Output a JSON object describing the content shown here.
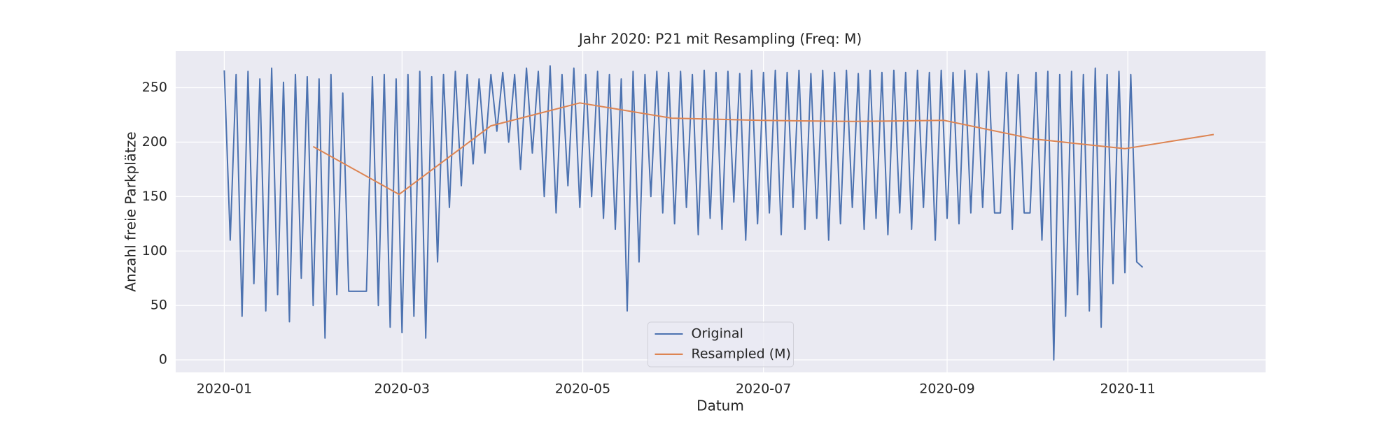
{
  "chart_data": {
    "type": "line",
    "title": "Jahr 2020: P21 mit Resampling (Freq: M)",
    "xlabel": "Datum",
    "ylabel": "Anzahl freie Parkplätze",
    "xlim": [
      -16.4,
      351.5
    ],
    "ylim": [
      -11.5,
      283.7
    ],
    "xticks": [
      {
        "value": 0,
        "label": "2020-01"
      },
      {
        "value": 60,
        "label": "2020-03"
      },
      {
        "value": 121,
        "label": "2020-05"
      },
      {
        "value": 182,
        "label": "2020-07"
      },
      {
        "value": 244,
        "label": "2020-09"
      },
      {
        "value": 305,
        "label": "2020-11"
      }
    ],
    "yticks": [
      0,
      50,
      100,
      150,
      200,
      250
    ],
    "grid": true,
    "legend": "lower center",
    "series": [
      {
        "name": "Original",
        "color": "#4c72b0",
        "x": [
          0,
          2,
          4,
          6,
          8,
          10,
          12,
          14,
          16,
          18,
          20,
          22,
          24,
          26,
          28,
          30,
          32,
          34,
          36,
          38,
          40,
          42,
          48,
          50,
          52,
          54,
          56,
          58,
          60,
          62,
          64,
          66,
          68,
          70,
          72,
          74,
          76,
          78,
          80,
          82,
          84,
          86,
          88,
          90,
          92,
          94,
          96,
          98,
          100,
          102,
          104,
          106,
          108,
          110,
          112,
          114,
          116,
          118,
          120,
          122,
          124,
          126,
          128,
          130,
          132,
          134,
          136,
          138,
          140,
          142,
          144,
          146,
          148,
          150,
          152,
          154,
          156,
          158,
          160,
          162,
          164,
          166,
          168,
          170,
          172,
          174,
          176,
          178,
          180,
          182,
          184,
          186,
          188,
          190,
          192,
          194,
          196,
          198,
          200,
          202,
          204,
          206,
          208,
          210,
          212,
          214,
          216,
          218,
          220,
          222,
          224,
          226,
          228,
          230,
          232,
          234,
          236,
          238,
          240,
          242,
          244,
          246,
          248,
          250,
          252,
          254,
          256,
          258,
          260,
          262,
          264,
          266,
          268,
          270,
          272,
          274,
          276,
          278,
          280,
          282,
          284,
          286,
          288,
          290,
          292,
          294,
          296,
          298,
          300,
          302,
          304,
          306,
          308,
          310
        ],
        "values": [
          266,
          110,
          262,
          40,
          265,
          70,
          258,
          45,
          268,
          60,
          255,
          35,
          262,
          75,
          260,
          50,
          258,
          20,
          262,
          60,
          245,
          63,
          63,
          260,
          50,
          262,
          30,
          258,
          25,
          262,
          40,
          265,
          20,
          260,
          90,
          262,
          140,
          265,
          160,
          262,
          180,
          258,
          190,
          262,
          210,
          264,
          200,
          262,
          175,
          268,
          190,
          265,
          150,
          270,
          135,
          262,
          160,
          268,
          140,
          262,
          150,
          265,
          130,
          262,
          120,
          258,
          45,
          265,
          90,
          262,
          150,
          265,
          135,
          264,
          125,
          265,
          140,
          262,
          115,
          266,
          130,
          264,
          120,
          265,
          145,
          263,
          110,
          266,
          125,
          264,
          135,
          266,
          115,
          264,
          140,
          266,
          120,
          263,
          130,
          266,
          110,
          264,
          125,
          266,
          140,
          263,
          120,
          266,
          130,
          264,
          115,
          266,
          135,
          264,
          120,
          266,
          140,
          264,
          110,
          266,
          130,
          264,
          125,
          266,
          135,
          263,
          140,
          265,
          135,
          135,
          264,
          120,
          262,
          135,
          135,
          264,
          110,
          265,
          0,
          262,
          40,
          265,
          60,
          262,
          45,
          268,
          30,
          262,
          70,
          265,
          80,
          262,
          90,
          85
        ]
      },
      {
        "name": "Resampled (M)",
        "color": "#dd8452",
        "x": [
          30,
          59,
          90,
          120,
          151,
          181,
          212,
          243,
          273,
          304,
          334
        ],
        "values": [
          196,
          152,
          215,
          236,
          222,
          220,
          219,
          220,
          203,
          194,
          207
        ]
      }
    ]
  }
}
